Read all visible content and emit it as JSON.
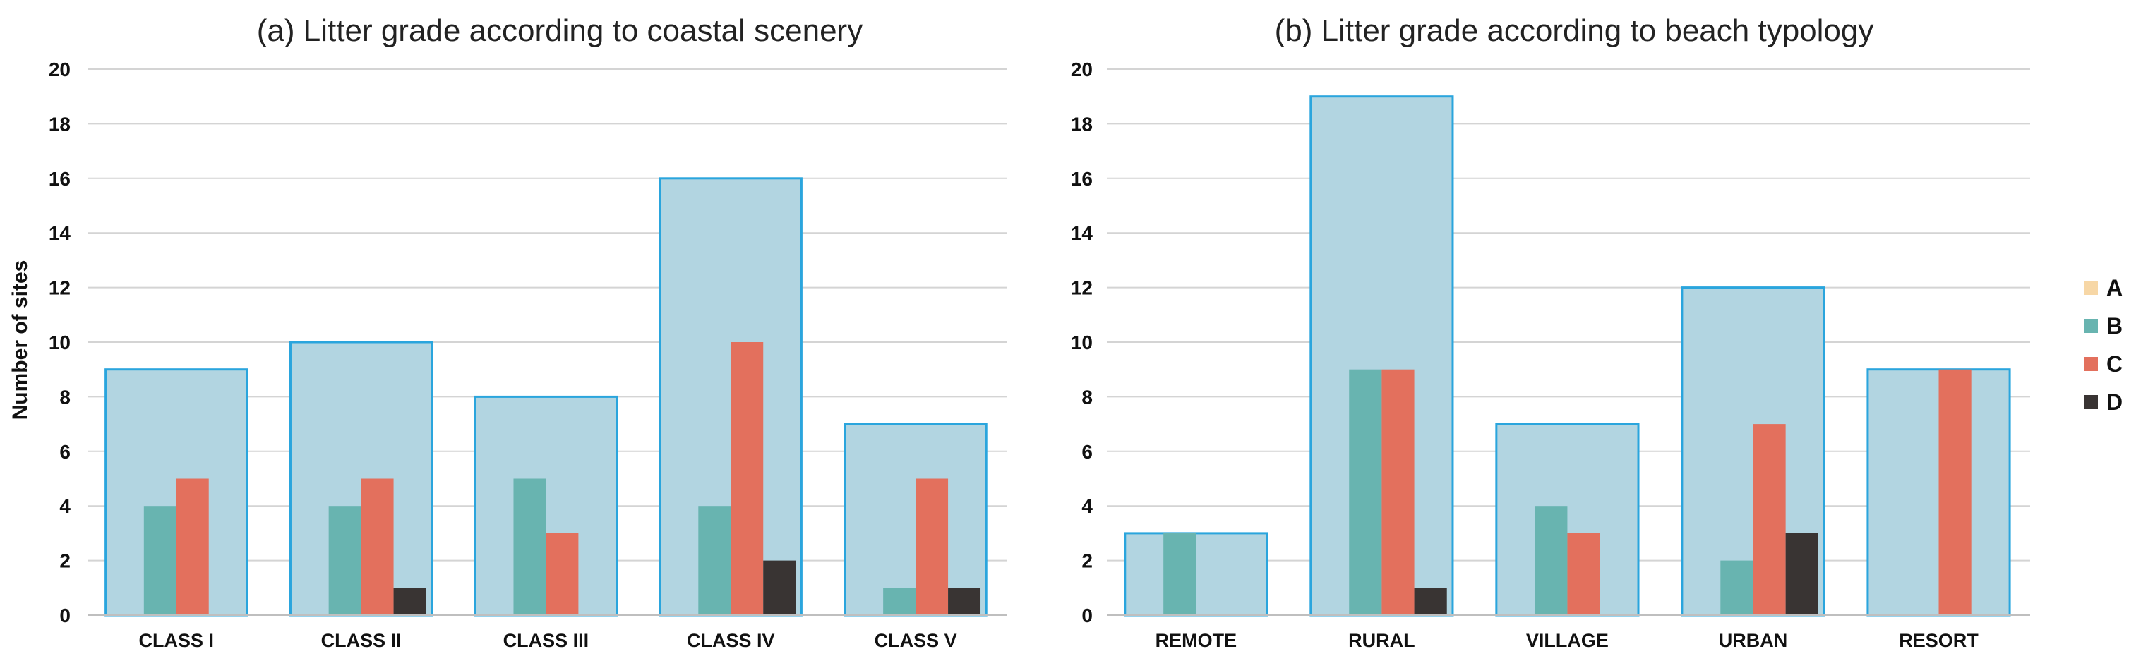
{
  "chart_data": [
    {
      "type": "bar",
      "title": "(a) Litter grade according to coastal scenery",
      "xlabel": "",
      "ylabel": "Number of sites",
      "ylim": [
        0,
        20
      ],
      "yticks": [
        0,
        2,
        4,
        6,
        8,
        10,
        12,
        14,
        16,
        18,
        20
      ],
      "categories": [
        "CLASS I",
        "CLASS II",
        "CLASS III",
        "CLASS IV",
        "CLASS V"
      ],
      "totals": [
        9,
        10,
        8,
        16,
        7
      ],
      "series": [
        {
          "name": "A",
          "values": [
            0,
            0,
            0,
            0,
            0
          ]
        },
        {
          "name": "B",
          "values": [
            4,
            4,
            5,
            4,
            1
          ]
        },
        {
          "name": "C",
          "values": [
            5,
            5,
            3,
            10,
            5
          ]
        },
        {
          "name": "D",
          "values": [
            0,
            1,
            0,
            2,
            1
          ]
        }
      ]
    },
    {
      "type": "bar",
      "title": "(b) Litter grade according to beach typology",
      "xlabel": "",
      "ylabel": "",
      "ylim": [
        0,
        20
      ],
      "yticks": [
        0,
        2,
        4,
        6,
        8,
        10,
        12,
        14,
        16,
        18,
        20
      ],
      "categories": [
        "REMOTE",
        "RURAL",
        "VILLAGE",
        "URBAN",
        "RESORT"
      ],
      "totals": [
        3,
        19,
        7,
        12,
        9
      ],
      "series": [
        {
          "name": "A",
          "values": [
            0,
            0,
            0,
            0,
            0
          ]
        },
        {
          "name": "B",
          "values": [
            3,
            9,
            4,
            2,
            0
          ]
        },
        {
          "name": "C",
          "values": [
            0,
            9,
            3,
            7,
            9
          ]
        },
        {
          "name": "D",
          "values": [
            0,
            1,
            0,
            3,
            0
          ]
        }
      ]
    }
  ],
  "legend": {
    "items": [
      {
        "label": "A",
        "color": "#f7d7a6"
      },
      {
        "label": "B",
        "color": "#68b4b0"
      },
      {
        "label": "C",
        "color": "#e3705d"
      },
      {
        "label": "D",
        "color": "#393433"
      }
    ]
  },
  "colors": {
    "total_fill": "#b2d5e1",
    "total_stroke": "#2aa5dd"
  }
}
